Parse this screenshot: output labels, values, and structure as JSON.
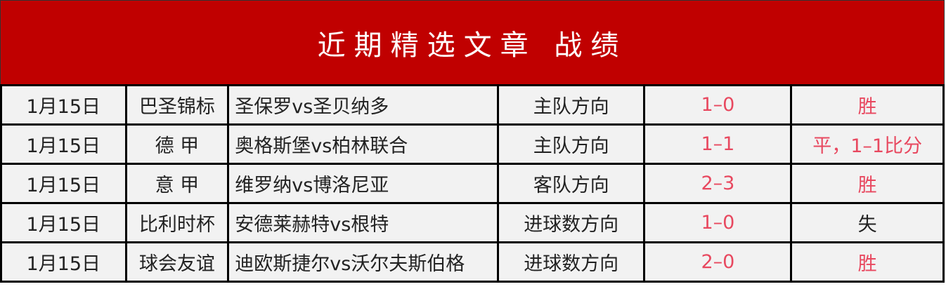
{
  "title": "近期精选文章 战绩",
  "colors": {
    "header_bg": "#c00000",
    "result_red": "#e8485f",
    "cell_bg": "#f2f2f2"
  },
  "rows": [
    {
      "date": "1月15日",
      "league": "巴圣锦标",
      "match": "圣保罗vs圣贝纳多",
      "direction": "主队方向",
      "score": "1–0",
      "result": "胜",
      "result_red": true
    },
    {
      "date": "1月15日",
      "league": "德 甲",
      "match": "奥格斯堡vs柏林联合",
      "direction": "主队方向",
      "score": "1–1",
      "result": "平，1–1比分",
      "result_red": true
    },
    {
      "date": "1月15日",
      "league": "意 甲",
      "match": "维罗纳vs博洛尼亚",
      "direction": "客队方向",
      "score": "2–3",
      "result": "胜",
      "result_red": true
    },
    {
      "date": "1月15日",
      "league": "比利时杯",
      "match": "安德莱赫特vs根特",
      "direction": "进球数方向",
      "score": "1–0",
      "result": "失",
      "result_red": false
    },
    {
      "date": "1月15日",
      "league": "球会友谊",
      "match": "迪欧斯捷尔vs沃尔夫斯伯格",
      "direction": "进球数方向",
      "score": "2–0",
      "result": "胜",
      "result_red": true
    }
  ]
}
